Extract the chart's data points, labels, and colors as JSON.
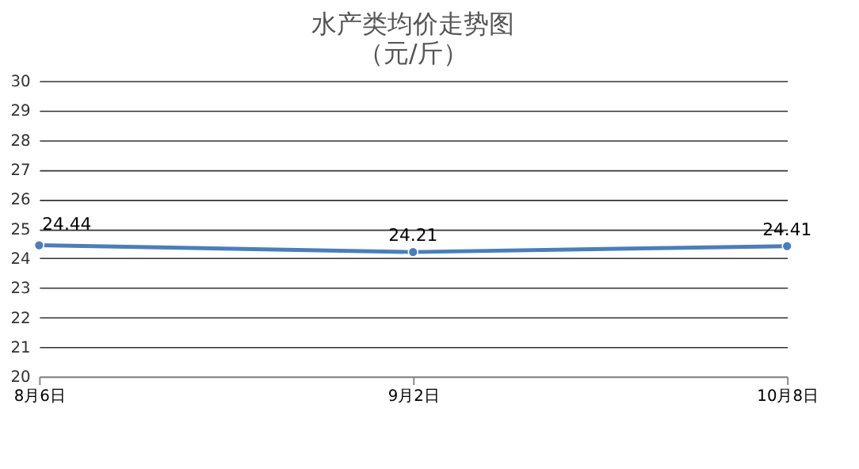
{
  "chart_data": {
    "type": "line",
    "title": "水产类均价走势图",
    "subtitle": "（元/斤）",
    "categories": [
      "8月6日",
      "9月2日",
      "10月8日"
    ],
    "series": [
      {
        "color": "#4a7ebb",
        "values": [
          24.44,
          24.21,
          24.41
        ]
      }
    ],
    "ylim": [
      20,
      30
    ],
    "yticks": [
      20,
      21,
      22,
      23,
      24,
      25,
      26,
      27,
      28,
      29,
      30
    ],
    "grid": "y",
    "marker": "circle",
    "line_style": "solid",
    "data_labels": true,
    "legend": false
  }
}
